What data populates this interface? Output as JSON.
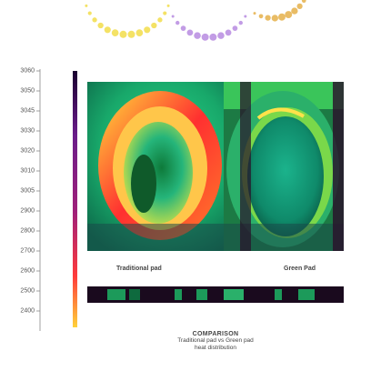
{
  "scale": {
    "ticks": [
      "3060",
      "3050",
      "3045",
      "3030",
      "3020",
      "3010",
      "3005",
      "2900",
      "2800",
      "2700",
      "2600",
      "2500",
      "2400"
    ]
  },
  "heatmap": {
    "left_label": "Traditional pad",
    "right_label": "Green Pad"
  },
  "summary": {
    "title": "COMPARISON",
    "line1": "Traditional pad vs Green pad",
    "line2": "heat distribution"
  },
  "colors": {
    "accent": "#1aa36a",
    "hot": "#ff2a2a",
    "warm": "#f5c542",
    "cool": "#24c07a",
    "frame": "#1a0a1e"
  }
}
